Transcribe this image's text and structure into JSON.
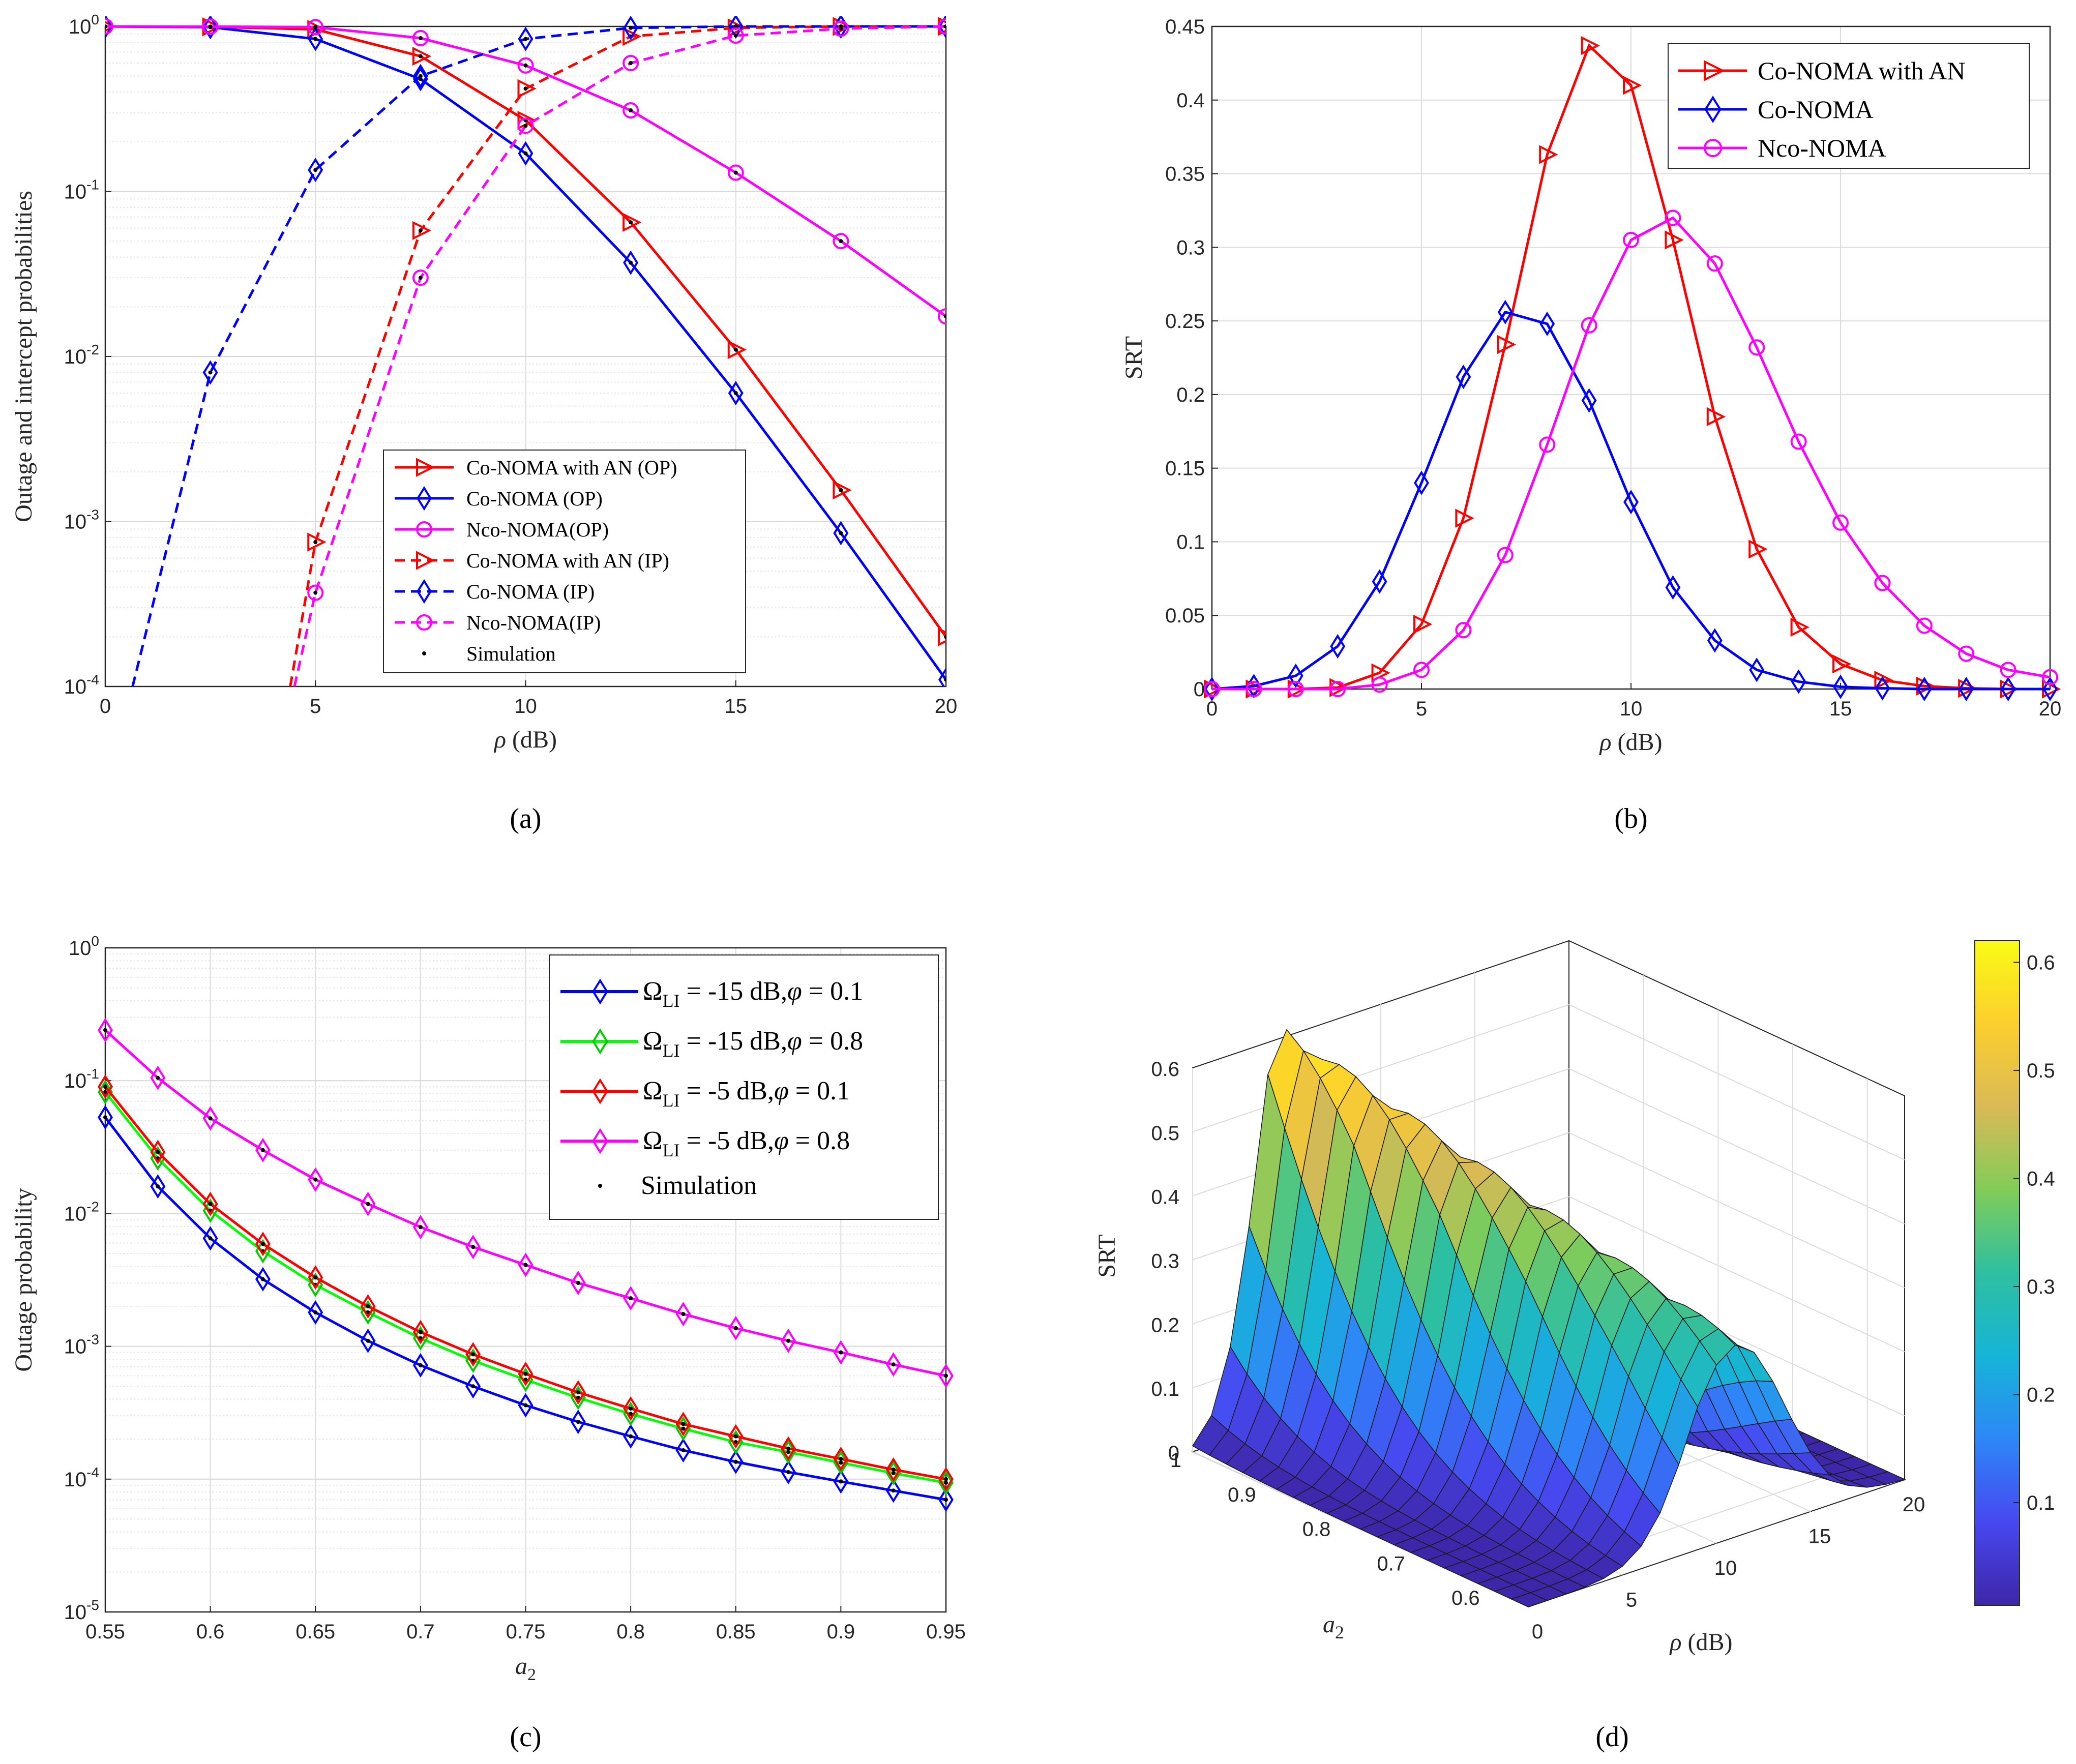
{
  "chart_data": [
    {
      "id": "a",
      "type": "line",
      "caption": "(a)",
      "xlabel_symbol": "ρ",
      "xlabel_unit": "(dB)",
      "ylabel": "Outage and intercept probabilities",
      "xlim": [
        0,
        20
      ],
      "ylim": [
        0.0001,
        1
      ],
      "yscale": "log",
      "xticks": [
        "0",
        "5",
        "10",
        "15",
        "20"
      ],
      "yticks": [
        {
          "base": "10",
          "exp": "-4"
        },
        {
          "base": "10",
          "exp": "-3"
        },
        {
          "base": "10",
          "exp": "-2"
        },
        {
          "base": "10",
          "exp": "-1"
        },
        {
          "base": "10",
          "exp": "0"
        }
      ],
      "legend_position": "bottom-center",
      "series": [
        {
          "name": "Co-NOMA with AN (OP)",
          "color": "#ff0000",
          "dash": "solid",
          "marker": "triangle-right",
          "x": [
            0,
            2.5,
            5,
            7.5,
            10,
            12.5,
            15,
            17.5,
            20
          ],
          "values": [
            1.0,
            0.995,
            0.96,
            0.66,
            0.27,
            0.065,
            0.011,
            0.00155,
            0.0002
          ]
        },
        {
          "name": "Co-NOMA (OP)",
          "color": "#0000ff",
          "dash": "solid",
          "marker": "diamond",
          "x": [
            0,
            2.5,
            5,
            7.5,
            10,
            12.5,
            15,
            17.5,
            20
          ],
          "values": [
            1.0,
            0.99,
            0.84,
            0.48,
            0.17,
            0.037,
            0.006,
            0.00085,
            0.00011
          ]
        },
        {
          "name": "Nco-NOMA(OP)",
          "color": "#ff00ff",
          "dash": "solid",
          "marker": "circle",
          "x": [
            0,
            2.5,
            5,
            7.5,
            10,
            12.5,
            15,
            17.5,
            20
          ],
          "values": [
            1.0,
            0.998,
            0.99,
            0.85,
            0.58,
            0.31,
            0.13,
            0.05,
            0.0175
          ]
        },
        {
          "name": "Co-NOMA with AN (IP)",
          "color": "#ff0000",
          "dash": "dashed",
          "marker": "triangle-right",
          "x": [
            4.4,
            5,
            7.5,
            10,
            12.5,
            15,
            17.5,
            20
          ],
          "values": [
            0.0001,
            0.00075,
            0.058,
            0.42,
            0.87,
            0.98,
            1.0,
            1.0
          ],
          "marker_x": [
            5,
            7.5,
            10,
            12.5,
            15,
            17.5,
            20
          ]
        },
        {
          "name": "Co-NOMA (IP)",
          "color": "#0000ff",
          "dash": "dashed",
          "marker": "diamond",
          "x": [
            0.65,
            2.5,
            5,
            7.5,
            10,
            12.5,
            15,
            17.5,
            20
          ],
          "values": [
            0.0001,
            0.008,
            0.135,
            0.5,
            0.84,
            0.98,
            1.0,
            1.0,
            1.0
          ],
          "marker_x": [
            2.5,
            5,
            7.5,
            10,
            12.5,
            15,
            17.5,
            20
          ]
        },
        {
          "name": "Nco-NOMA(IP)",
          "color": "#ff00ff",
          "dash": "dashed",
          "marker": "circle",
          "x": [
            4.5,
            5,
            7.5,
            10,
            12.5,
            15,
            17.5,
            20
          ],
          "values": [
            0.0001,
            0.00037,
            0.03,
            0.25,
            0.6,
            0.88,
            0.97,
            1.0
          ],
          "marker_x": [
            5,
            7.5,
            10,
            12.5,
            15,
            17.5,
            20
          ]
        },
        {
          "name": "Simulation",
          "color": "#000000",
          "dash": "none",
          "marker": "dot",
          "points_from_series": true
        }
      ]
    },
    {
      "id": "b",
      "type": "line",
      "caption": "(b)",
      "xlabel_symbol": "ρ",
      "xlabel_unit": "(dB)",
      "ylabel": "SRT",
      "xlim": [
        0,
        20
      ],
      "ylim": [
        0,
        0.45
      ],
      "xticks": [
        "0",
        "5",
        "10",
        "15",
        "20"
      ],
      "yticks": [
        "0",
        "0.05",
        "0.1",
        "0.15",
        "0.2",
        "0.25",
        "0.3",
        "0.35",
        "0.4",
        "0.45"
      ],
      "legend_position": "top-right",
      "x": [
        0,
        1,
        2,
        3,
        4,
        5,
        6,
        7,
        8,
        9,
        10,
        11,
        12,
        13,
        14,
        15,
        16,
        17,
        18,
        19,
        20
      ],
      "series": [
        {
          "name": "Co-NOMA with AN",
          "color": "#ff0000",
          "marker": "triangle-right",
          "values": [
            0,
            0,
            0,
            0.001,
            0.011,
            0.044,
            0.116,
            0.234,
            0.363,
            0.437,
            0.41,
            0.305,
            0.185,
            0.095,
            0.042,
            0.017,
            0.006,
            0.002,
            0.0005,
            0,
            0
          ]
        },
        {
          "name": "Co-NOMA",
          "color": "#0000ff",
          "marker": "diamond",
          "values": [
            0,
            0.002,
            0.009,
            0.029,
            0.073,
            0.14,
            0.212,
            0.256,
            0.248,
            0.196,
            0.127,
            0.069,
            0.033,
            0.013,
            0.005,
            0.0015,
            0.0005,
            0,
            0,
            0,
            0
          ]
        },
        {
          "name": "Nco-NOMA",
          "color": "#ff00ff",
          "marker": "circle",
          "values": [
            0,
            0,
            0,
            0,
            0.003,
            0.013,
            0.04,
            0.091,
            0.166,
            0.247,
            0.305,
            0.32,
            0.289,
            0.232,
            0.168,
            0.113,
            0.072,
            0.043,
            0.024,
            0.013,
            0.008
          ]
        }
      ]
    },
    {
      "id": "c",
      "type": "line",
      "caption": "(c)",
      "xlabel": "a",
      "xlabel_sub": "2",
      "ylabel": "Outage probability",
      "xlim": [
        0.55,
        0.95
      ],
      "ylim": [
        1e-05,
        1
      ],
      "yscale": "log",
      "xticks": [
        "0.55",
        "0.6",
        "0.65",
        "0.7",
        "0.75",
        "0.8",
        "0.85",
        "0.9",
        "0.95"
      ],
      "yticks": [
        {
          "base": "10",
          "exp": "-5"
        },
        {
          "base": "10",
          "exp": "-4"
        },
        {
          "base": "10",
          "exp": "-3"
        },
        {
          "base": "10",
          "exp": "-2"
        },
        {
          "base": "10",
          "exp": "-1"
        },
        {
          "base": "10",
          "exp": "0"
        }
      ],
      "legend_position": "top-right",
      "x": [
        0.55,
        0.575,
        0.6,
        0.625,
        0.65,
        0.675,
        0.7,
        0.725,
        0.75,
        0.775,
        0.8,
        0.825,
        0.85,
        0.875,
        0.9,
        0.925,
        0.95
      ],
      "series": [
        {
          "name": "Ω_LI = -15 dB, φ = 0.1",
          "legend_main": "Ω",
          "legend_sub": "LI",
          "legend_rest": " = -15 dB,",
          "legend_phi": "φ",
          "legend_tail": " = 0.1",
          "color": "#0000ff",
          "marker": "diamond",
          "values": [
            0.053,
            0.016,
            0.0065,
            0.0032,
            0.0018,
            0.0011,
            0.00072,
            0.0005,
            0.00036,
            0.00027,
            0.00021,
            0.000165,
            0.000135,
            0.000113,
            9.6e-05,
            8.2e-05,
            7e-05
          ]
        },
        {
          "name": "Ω_LI = -15 dB, φ = 0.8",
          "legend_main": "Ω",
          "legend_sub": "LI",
          "legend_rest": " = -15 dB,",
          "legend_phi": "φ",
          "legend_tail": " = 0.8",
          "color": "#00ff00",
          "marker": "diamond",
          "values": [
            0.082,
            0.026,
            0.0105,
            0.0052,
            0.0029,
            0.0018,
            0.00115,
            0.00078,
            0.00056,
            0.00041,
            0.00031,
            0.00024,
            0.00019,
            0.00016,
            0.000133,
            0.000111,
            9.4e-05
          ]
        },
        {
          "name": "Ω_LI = -5 dB, φ = 0.1",
          "legend_main": "Ω",
          "legend_sub": "LI",
          "legend_rest": " = -5 dB,",
          "legend_phi": "φ",
          "legend_tail": " = 0.1",
          "color": "#ff0000",
          "marker": "diamond",
          "values": [
            0.09,
            0.029,
            0.0118,
            0.0059,
            0.0033,
            0.002,
            0.00128,
            0.00087,
            0.00062,
            0.00045,
            0.00034,
            0.00026,
            0.00021,
            0.00017,
            0.000142,
            0.000118,
            0.0001
          ]
        },
        {
          "name": "Ω_LI = -5 dB, φ = 0.8",
          "legend_main": "Ω",
          "legend_sub": "LI",
          "legend_rest": " = -5 dB,",
          "legend_phi": "φ",
          "legend_tail": " = 0.8",
          "color": "#ff00ff",
          "marker": "diamond",
          "values": [
            0.24,
            0.105,
            0.052,
            0.03,
            0.018,
            0.0118,
            0.0079,
            0.0056,
            0.0041,
            0.003,
            0.0023,
            0.00175,
            0.00137,
            0.0011,
            0.0009,
            0.00073,
            0.0006
          ]
        },
        {
          "name": "Simulation",
          "color": "#000000",
          "marker": "dot",
          "points_from_series": true
        }
      ]
    },
    {
      "id": "d",
      "type": "surface",
      "caption": "(d)",
      "xlabel_symbol": "ρ",
      "xlabel_unit": "(dB)",
      "ylabel": "a",
      "ylabel_sub": "2",
      "zlabel": "SRT",
      "xlim": [
        0,
        20
      ],
      "ylim": [
        0.55,
        1
      ],
      "zlim": [
        0,
        0.6
      ],
      "xticks": [
        "0",
        "5",
        "10",
        "15",
        "20"
      ],
      "yticks": [
        "0.6",
        "0.7",
        "0.8",
        "0.9",
        "1"
      ],
      "zticks": [
        "0",
        "0.1",
        "0.2",
        "0.3",
        "0.4",
        "0.5",
        "0.6"
      ],
      "colorbar_ticks": [
        "0.1",
        "0.2",
        "0.3",
        "0.4",
        "0.5",
        "0.6"
      ],
      "colormap": [
        "#3e26a8",
        "#4748f0",
        "#2e87f7",
        "#16b4d8",
        "#2ebfa0",
        "#81cc59",
        "#d9ba56",
        "#fcce2e",
        "#f9fb15"
      ],
      "surface_model": "SRT peaks near 0.61 at ρ ≈ 5 dB for a2 ≈ 1, ridge moving toward ρ ≈ 11 dB as a2 decreases to 0.55, falling to ~0 for large ρ"
    }
  ]
}
